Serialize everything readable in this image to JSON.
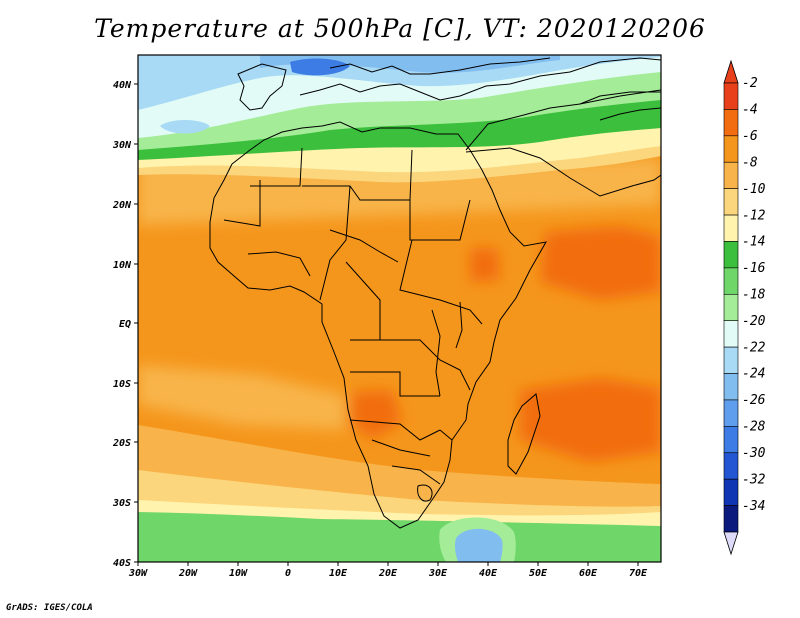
{
  "title": "Temperature at 500hPa [C], VT: 2020120206",
  "credit": "GrADS: IGES/COLA",
  "axes": {
    "lon_ticks": [
      "30W",
      "20W",
      "10W",
      "0",
      "10E",
      "20E",
      "30E",
      "40E",
      "50E",
      "60E",
      "70E"
    ],
    "lat_ticks": [
      "40N",
      "30N",
      "20N",
      "10N",
      "EQ",
      "10S",
      "20S",
      "30S",
      "40S"
    ]
  },
  "colorbar": {
    "labels": [
      "-2",
      "-4",
      "-6",
      "-8",
      "-10",
      "-12",
      "-14",
      "-16",
      "-18",
      "-20",
      "-22",
      "-24",
      "-26",
      "-28",
      "-30",
      "-32",
      "-34"
    ],
    "colors": [
      "#e8401a",
      "#f26d10",
      "#f5961c",
      "#f8b44a",
      "#fcd67c",
      "#fff3ae",
      "#3cbf3c",
      "#6fd66a",
      "#a4ec98",
      "#e2fbf6",
      "#a8d9f5",
      "#82bdf0",
      "#5e9eec",
      "#3c7ce4",
      "#2256d2",
      "#1136b4",
      "#0c1a7e"
    ]
  }
}
